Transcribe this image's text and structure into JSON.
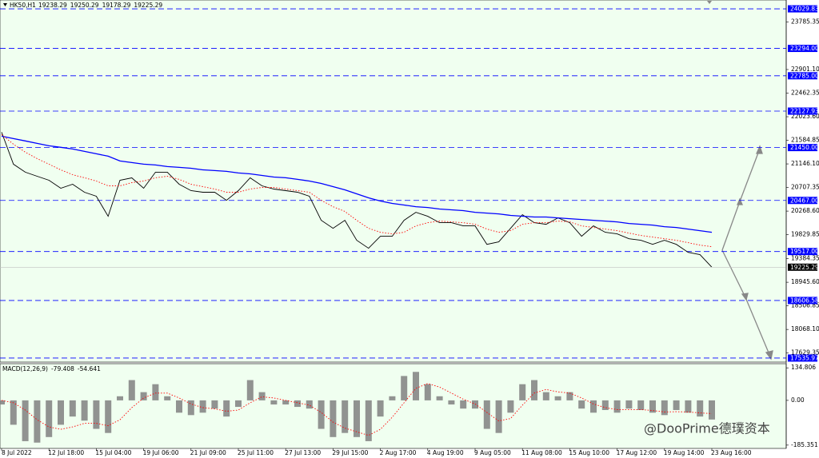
{
  "chart_data": [
    {
      "type": "line",
      "title": "HK50,H1",
      "last_bar": [
        19238.29,
        19250.29,
        19178.29,
        19225.29
      ],
      "x": [
        "8 Jul 2022",
        null,
        null,
        null,
        "12 Jul 18:00",
        null,
        null,
        null,
        "15 Jul 04:00",
        null,
        null,
        null,
        "19 Jul 06:00",
        null,
        null,
        null,
        "21 Jul 09:00",
        null,
        null,
        null,
        "25 Jul 11:00",
        null,
        null,
        null,
        "27 Jul 13:00",
        null,
        null,
        null,
        "29 Jul 15:00",
        null,
        null,
        null,
        "2 Aug 17:00",
        null,
        null,
        null,
        "4 Aug 19:00",
        null,
        null,
        null,
        "9 Aug 05:00",
        null,
        null,
        null,
        "11 Aug 08:00",
        null,
        null,
        null,
        "15 Aug 10:00",
        null,
        null,
        null,
        "17 Aug 12:00",
        null,
        null,
        null,
        "19 Aug 14:00",
        null,
        null,
        null,
        "23 Aug 16:00"
      ],
      "series": [
        {
          "color": "#000000",
          "values": [
            21736,
            21141,
            20992,
            20917,
            20843,
            20694,
            20768,
            20619,
            20545,
            20172,
            20843,
            20887,
            20694,
            20992,
            20992,
            20768,
            20649,
            20619,
            20619,
            20470,
            20649,
            20887,
            20738,
            20679,
            20649,
            20619,
            20545,
            20098,
            19949,
            20098,
            19726,
            19577,
            19800,
            19800,
            20098,
            20247,
            20172,
            20053,
            20053,
            19994,
            19994,
            19651,
            19696,
            19949,
            20202,
            20053,
            20024,
            20143,
            20053,
            19800,
            19994,
            19875,
            19845,
            19755,
            19726,
            19651,
            19726,
            19651,
            19502,
            19458,
            19225.29
          ]
        },
        {
          "color": "#0000ff",
          "values": [
            21662,
            21617,
            21573,
            21528,
            21483,
            21454,
            21424,
            21379,
            21334,
            21290,
            21200,
            21171,
            21141,
            21126,
            21096,
            21081,
            21066,
            21036,
            21022,
            21007,
            20977,
            20962,
            20932,
            20902,
            20888,
            20858,
            20828,
            20783,
            20724,
            20664,
            20590,
            20515,
            20456,
            20411,
            20381,
            20351,
            20336,
            20307,
            20292,
            20277,
            20247,
            20232,
            20217,
            20188,
            20173,
            20158,
            20158,
            20143,
            20128,
            20113,
            20098,
            20083,
            20068,
            20039,
            20024,
            20009,
            19979,
            19964,
            19934,
            19905,
            19875
          ]
        },
        {
          "color": "#ff0000",
          "dotted": true,
          "values": [
            21691,
            21513,
            21364,
            21245,
            21141,
            21036,
            20947,
            20888,
            20828,
            20739,
            20739,
            20798,
            20828,
            20888,
            20917,
            20858,
            20768,
            20724,
            20679,
            20619,
            20619,
            20679,
            20709,
            20709,
            20679,
            20649,
            20619,
            20470,
            20351,
            20262,
            20098,
            19949,
            19875,
            19845,
            19875,
            19994,
            20053,
            20083,
            20068,
            20053,
            20024,
            19934,
            19875,
            19905,
            20024,
            20053,
            20053,
            20083,
            20068,
            19994,
            19964,
            19934,
            19905,
            19860,
            19815,
            19785,
            19756,
            19726,
            19681,
            19636,
            19607
          ]
        }
      ],
      "levels": [
        24029.83,
        {
          "value": 23294,
          "label": "23294.00"
        },
        {
          "value": 22785,
          "label": "22785.00"
        },
        22127.93,
        {
          "value": 21450,
          "label": "21450.00"
        },
        {
          "value": 20467,
          "label": "20467.00"
        },
        {
          "value": 19517,
          "label": "19517.00"
        },
        18606.58,
        17535.97
      ],
      "level_color": "#0000ff",
      "ylim": [
        17461,
        24194
      ],
      "yticks": [
        23785.35,
        {
          "value": 22901.1,
          "label": "22901.10"
        },
        22462.35,
        {
          "value": 22023.6,
          "label": "22023.60"
        },
        21584.85,
        {
          "value": 21146.1,
          "label": "21146.10"
        },
        20707.35,
        {
          "value": 20268.6,
          "label": "20268.60"
        },
        19829.85,
        19384.35,
        {
          "value": 18945.6,
          "label": "18945.60"
        },
        18506.85,
        {
          "value": 18068.1,
          "label": "18068.10"
        },
        17629.35
      ],
      "watermark": "@DooPrime德璞资本"
    },
    {
      "type": "macd",
      "title": "MACD(12,26,9)",
      "series": [
        {
          "color": "#808080",
          "values": [
            -17,
            -101,
            -169,
            -175,
            -152,
            -101,
            -67,
            -84,
            -118,
            -135,
            17,
            84,
            34,
            67,
            17,
            -51,
            -61,
            -51,
            -34,
            -67,
            -27,
            84,
            34,
            -17,
            -17,
            -27,
            -34,
            -118,
            -152,
            -135,
            -152,
            -169,
            -67,
            17,
            101,
            118,
            67,
            17,
            -17,
            -34,
            -34,
            -118,
            -135,
            -51,
            67,
            84,
            34,
            17,
            34,
            -34,
            -51,
            -40,
            -51,
            -34,
            -40,
            -51,
            -61,
            -40,
            -51,
            -67,
            -79.408
          ]
        },
        {
          "color": "#ff0000",
          "dotted": true,
          "values": [
            0,
            -10,
            -40,
            -80,
            -110,
            -120,
            -110,
            -95,
            -95,
            -105,
            -80,
            -30,
            10,
            30,
            30,
            10,
            -15,
            -30,
            -35,
            -45,
            -40,
            -10,
            15,
            10,
            0,
            -10,
            -20,
            -50,
            -90,
            -115,
            -130,
            -145,
            -120,
            -70,
            -10,
            50,
            70,
            55,
            30,
            5,
            -15,
            -50,
            -85,
            -75,
            -20,
            30,
            45,
            35,
            30,
            10,
            -15,
            -30,
            -38,
            -38,
            -38,
            -42,
            -48,
            -47,
            -48,
            -52,
            -54.641
          ]
        }
      ],
      "ylim": [
        -199,
        152
      ],
      "yticks": [
        134.806,
        {
          "value": 0,
          "label": "0.00"
        },
        -185.351
      ]
    }
  ]
}
